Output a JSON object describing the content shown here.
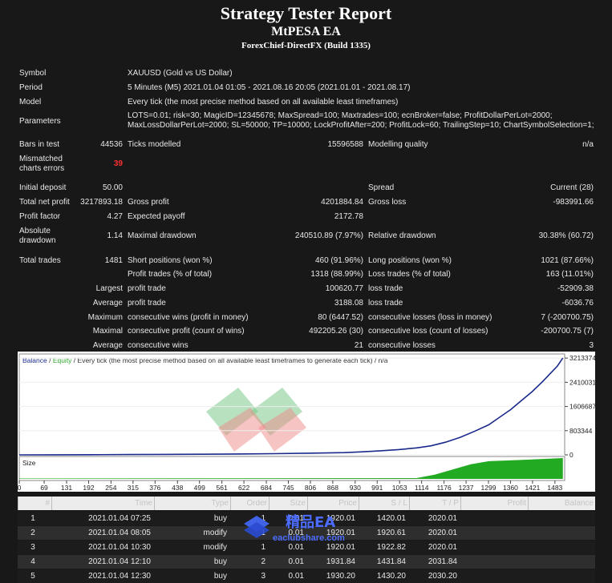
{
  "header": {
    "title": "Strategy Tester Report",
    "ea_name": "MtPESA EA",
    "broker": "ForexChief-DirectFX (Build 1335)"
  },
  "settings": {
    "symbol_label": "Symbol",
    "symbol_value": "XAUUSD (Gold vs US Dollar)",
    "period_label": "Period",
    "period_value": "5 Minutes (M5) 2021.01.04 01:05 - 2021.08.16 20:05 (2021.01.01 - 2021.08.17)",
    "model_label": "Model",
    "model_value": "Every tick (the most precise method based on all available least timeframes)",
    "parameters_label": "Parameters",
    "parameters_line1": "LOTS=0.01; risk=30; MagicID=12345678; MaxSpread=100; Maxtrades=100; ecnBroker=false; ProfitDollarPerLot=2000;",
    "parameters_line2": "MaxLossDollarPerLot=2000; SL=50000; TP=10000; LockProfitAfter=200; ProfitLock=60; TrailingStep=10; ChartSymbolSelection=1;"
  },
  "stats": {
    "bars_label": "Bars in test",
    "bars_value": "44536",
    "ticks_label": "Ticks modelled",
    "ticks_value": "15596588",
    "quality_label": "Modelling quality",
    "quality_value": "n/a",
    "mismatch_label_1": "Mismatched",
    "mismatch_label_2": "charts errors",
    "mismatch_value": "39",
    "deposit_label": "Initial deposit",
    "deposit_value": "50.00",
    "spread_label": "Spread",
    "spread_value": "Current (28)",
    "net_label": "Total net profit",
    "net_value": "3217893.18",
    "gross_profit_label": "Gross profit",
    "gross_profit_value": "4201884.84",
    "gross_loss_label": "Gross loss",
    "gross_loss_value": "-983991.66",
    "pf_label": "Profit factor",
    "pf_value": "4.27",
    "payoff_label": "Expected payoff",
    "payoff_value": "2172.78",
    "abs_dd_label_1": "Absolute",
    "abs_dd_label_2": "drawdown",
    "abs_dd_value": "1.14",
    "max_dd_label": "Maximal drawdown",
    "max_dd_value": "240510.89 (7.97%)",
    "rel_dd_label": "Relative drawdown",
    "rel_dd_value": "30.38% (60.72)",
    "trades_label": "Total trades",
    "trades_value": "1481",
    "short_label": "Short positions (won %)",
    "short_value": "460 (91.96%)",
    "long_label": "Long positions (won %)",
    "long_value": "1021 (87.66%)",
    "profit_trades_label": "Profit trades (% of total)",
    "profit_trades_value": "1318 (88.99%)",
    "loss_trades_label": "Loss trades (% of total)",
    "loss_trades_value": "163 (11.01%)",
    "largest_label": "Largest",
    "largest_profit_label": "profit trade",
    "largest_profit_value": "100620.77",
    "largest_loss_label": "loss trade",
    "largest_loss_value": "-52909.38",
    "average_label": "Average",
    "average_profit_label": "profit trade",
    "average_profit_value": "3188.08",
    "average_loss_label": "loss trade",
    "average_loss_value": "-6036.76",
    "maximum_label": "Maximum",
    "max_cons_wins_label": "consecutive wins (profit in money)",
    "max_cons_wins_value": "80 (6447.52)",
    "max_cons_losses_label": "consecutive losses (loss in money)",
    "max_cons_losses_value": "7 (-200700.75)",
    "maximal_label": "Maximal",
    "maximal_profit_label": "consecutive profit (count of wins)",
    "maximal_profit_value": "492205.26 (30)",
    "maximal_loss_label": "consecutive loss (count of losses)",
    "maximal_loss_value": "-200700.75 (7)",
    "avg_cons_label": "Average",
    "avg_cons_wins_label": "consecutive wins",
    "avg_cons_wins_value": "21",
    "avg_cons_losses_label": "consecutive losses",
    "avg_cons_losses_value": "3"
  },
  "chart_data": {
    "type": "line",
    "legend_balance": "Balance",
    "legend_sep": " / ",
    "legend_equity": "Equity",
    "legend_rest": " / Every tick (the most precise method based on all available least timeframes to generate each tick) / n/a",
    "size_label": "Size",
    "colors": {
      "balance": "#1a2a8c",
      "equity": "#2fa830",
      "size_fill": "#22aa22"
    },
    "y_ticks": [
      "3213374",
      "2410031",
      "1606687",
      "803344",
      "0"
    ],
    "y_tick_values": [
      3213374,
      2410031,
      1606687,
      803344,
      0
    ],
    "ylim": [
      0,
      3350000
    ],
    "x_ticks": [
      "0",
      "69",
      "131",
      "192",
      "254",
      "315",
      "376",
      "438",
      "499",
      "561",
      "622",
      "684",
      "745",
      "806",
      "868",
      "930",
      "991",
      "1053",
      "1114",
      "1176",
      "1237",
      "1299",
      "1360",
      "1421",
      "1483"
    ],
    "xlim": [
      0,
      1510
    ],
    "series": [
      {
        "name": "Balance",
        "x": [
          0,
          100,
          200,
          300,
          400,
          500,
          600,
          700,
          800,
          900,
          950,
          1000,
          1050,
          1100,
          1140,
          1180,
          1220,
          1260,
          1300,
          1330,
          1360,
          1390,
          1420,
          1450,
          1470,
          1490,
          1505
        ],
        "y": [
          50,
          2000,
          6000,
          10000,
          15000,
          20000,
          28000,
          40000,
          55000,
          75000,
          100000,
          135000,
          175000,
          230000,
          300000,
          420000,
          580000,
          780000,
          1000000,
          1250000,
          1500000,
          1800000,
          2100000,
          2450000,
          2700000,
          2950000,
          3213374
        ]
      }
    ],
    "size_series": {
      "x": [
        0,
        1100,
        1150,
        1200,
        1250,
        1300,
        1400,
        1505
      ],
      "y": [
        0.02,
        0.04,
        0.2,
        0.45,
        0.7,
        0.85,
        0.92,
        1.0
      ]
    }
  },
  "trades_table": {
    "headers": [
      "#",
      "Time",
      "Type",
      "Order",
      "Size",
      "Price",
      "S / L",
      "T / P",
      "Profit",
      "Balance"
    ],
    "rows": [
      [
        "1",
        "2021.01.04 07:25",
        "buy",
        "1",
        "0.01",
        "1920.01",
        "1420.01",
        "2020.01",
        "",
        ""
      ],
      [
        "2",
        "2021.01.04 08:05",
        "modify",
        "1",
        "0.01",
        "1920.01",
        "1920.61",
        "2020.01",
        "",
        ""
      ],
      [
        "3",
        "2021.01.04 10:30",
        "modify",
        "1",
        "0.01",
        "1920.01",
        "1922.82",
        "2020.01",
        "",
        ""
      ],
      [
        "4",
        "2021.01.04 12:10",
        "buy",
        "2",
        "0.01",
        "1931.84",
        "1431.84",
        "2031.84",
        "",
        ""
      ],
      [
        "5",
        "2021.01.04 12:30",
        "buy",
        "3",
        "0.01",
        "1930.20",
        "1430.20",
        "2030.20",
        "",
        ""
      ]
    ]
  },
  "watermark": {
    "text": "精品EA",
    "subtext": "eaclubshare.com"
  }
}
